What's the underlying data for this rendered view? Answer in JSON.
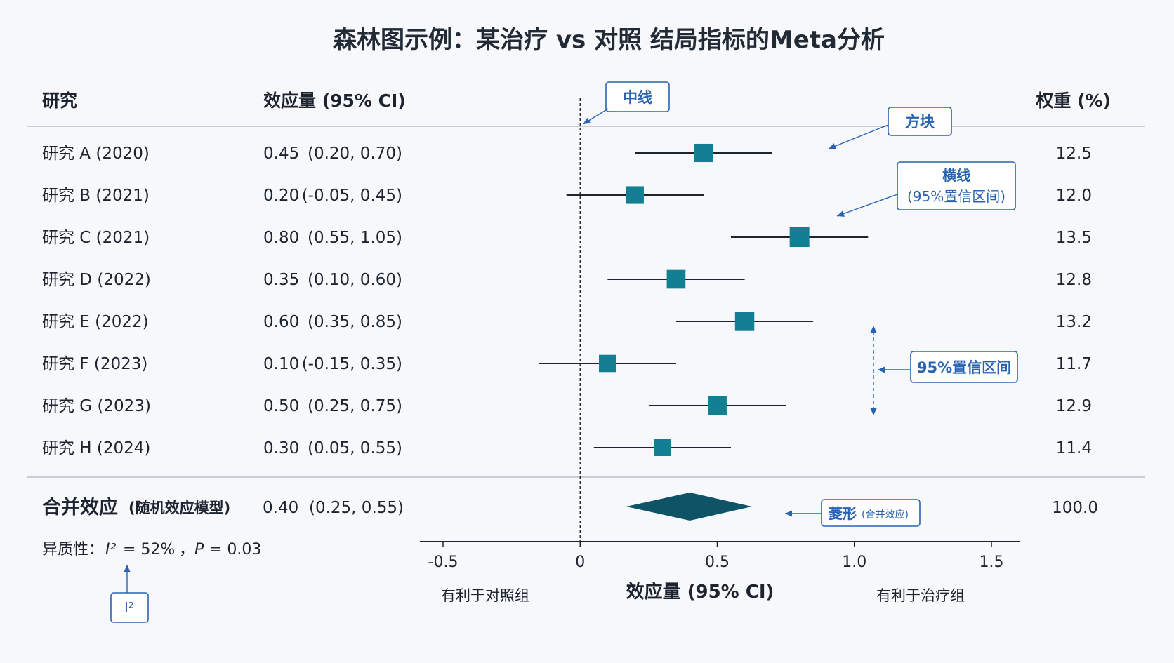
{
  "chart_data": {
    "type": "forest",
    "title": "森林图示例：某治疗 vs 对照 结局指标的Meta分析",
    "columns": {
      "study": "研究",
      "effect": "效应量 (95% CI)",
      "weight": "权重 (%)"
    },
    "studies": [
      {
        "label": "研究 A (2020)",
        "effect": 0.45,
        "ci_low": 0.2,
        "ci_high": 0.7,
        "est_text": "0.45",
        "ci_text": "(0.20,  0.70)",
        "weight": 12.5,
        "weight_text": "12.5"
      },
      {
        "label": "研究 B (2021)",
        "effect": 0.2,
        "ci_low": -0.05,
        "ci_high": 0.45,
        "est_text": "0.20",
        "ci_text": "(-0.05,  0.45)",
        "weight": 12.0,
        "weight_text": "12.0"
      },
      {
        "label": "研究 C (2021)",
        "effect": 0.8,
        "ci_low": 0.55,
        "ci_high": 1.05,
        "est_text": "0.80",
        "ci_text": "(0.55,  1.05)",
        "weight": 13.5,
        "weight_text": "13.5"
      },
      {
        "label": "研究 D (2022)",
        "effect": 0.35,
        "ci_low": 0.1,
        "ci_high": 0.6,
        "est_text": "0.35",
        "ci_text": "(0.10,  0.60)",
        "weight": 12.8,
        "weight_text": "12.8"
      },
      {
        "label": "研究 E (2022)",
        "effect": 0.6,
        "ci_low": 0.35,
        "ci_high": 0.85,
        "est_text": "0.60",
        "ci_text": "(0.35,  0.85)",
        "weight": 13.2,
        "weight_text": "13.2"
      },
      {
        "label": "研究 F (2023)",
        "effect": 0.1,
        "ci_low": -0.15,
        "ci_high": 0.35,
        "est_text": "0.10",
        "ci_text": "(-0.15,  0.35)",
        "weight": 11.7,
        "weight_text": "11.7"
      },
      {
        "label": "研究 G (2023)",
        "effect": 0.5,
        "ci_low": 0.25,
        "ci_high": 0.75,
        "est_text": "0.50",
        "ci_text": "(0.25,  0.75)",
        "weight": 12.9,
        "weight_text": "12.9"
      },
      {
        "label": "研究 H (2024)",
        "effect": 0.3,
        "ci_low": 0.05,
        "ci_high": 0.55,
        "est_text": "0.30",
        "ci_text": "(0.05,  0.55)",
        "weight": 11.4,
        "weight_text": "11.4"
      }
    ],
    "pooled": {
      "label": "合并效应",
      "model": "(随机效应模型)",
      "effect": 0.4,
      "ci_low": 0.25,
      "ci_high": 0.55,
      "est_text": "0.40",
      "ci_text": "(0.25,  0.55)",
      "weight": 100.0,
      "weight_text": "100.0"
    },
    "heterogeneity": {
      "prefix": "异质性：",
      "i2_symbol": "I²",
      "i2_text": "= 52%",
      "sep": "，",
      "p_symbol": "P",
      "p_text": "= 0.03",
      "i2": 52,
      "p": 0.03
    },
    "x_axis": {
      "label": "效应量 (95% CI)",
      "xlim": [
        -0.5,
        1.5
      ],
      "ticks": [
        -0.5,
        0,
        0.5,
        1.0,
        1.5
      ],
      "tick_labels": [
        "-0.5",
        "0",
        "0.5",
        "1.0",
        "1.5"
      ],
      "favours_left": "有利于对照组",
      "favours_right": "有利于治疗组"
    },
    "null_line": 0,
    "annotations": {
      "center_line": "中线",
      "square": "方块",
      "hline_title": "横线",
      "hline_sub": "(95%置信区间)",
      "ci_bracket": "95%置信区间",
      "diamond_main": "菱形",
      "diamond_sub": "(合并效应)",
      "i2_box": "I²"
    }
  },
  "colors": {
    "square": "#127f93",
    "diamond": "#0f5466",
    "annotation": "#2a64b0",
    "line": "#1d2430",
    "separator": "#b9bfc7",
    "background": "#f6f8fb"
  }
}
